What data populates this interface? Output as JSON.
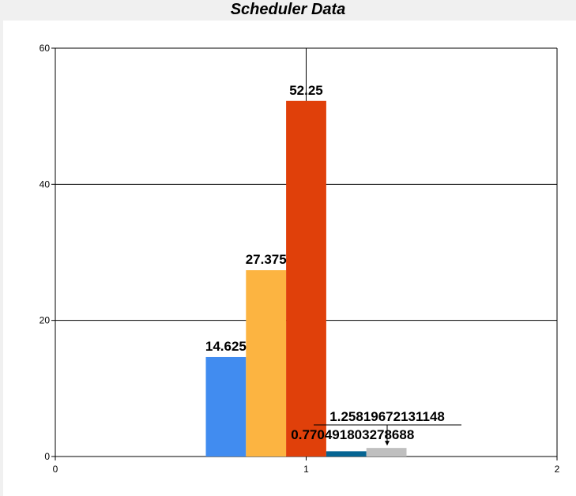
{
  "chart_data": {
    "type": "bar",
    "title": "Scheduler Data",
    "xlabel": "",
    "ylabel": "",
    "xlim": [
      0,
      2
    ],
    "ylim": [
      0,
      60
    ],
    "x_ticks": [
      "0",
      "1",
      "2"
    ],
    "y_ticks": [
      "0",
      "20",
      "40",
      "60"
    ],
    "grid": true,
    "categories": [
      "1"
    ],
    "series": [
      {
        "values": [
          14.625
        ],
        "color": "#418CF0",
        "label": "14.625"
      },
      {
        "values": [
          27.375
        ],
        "color": "#FCB441",
        "label": "27.375"
      },
      {
        "values": [
          52.25
        ],
        "color": "#E0400A",
        "label": "52.25"
      },
      {
        "values": [
          0.770491803278688
        ],
        "color": "#056492",
        "label": "0.770491803278688"
      },
      {
        "values": [
          1.25819672131148
        ],
        "color": "#BFBFBF",
        "label": "1.25819672131148"
      }
    ]
  }
}
